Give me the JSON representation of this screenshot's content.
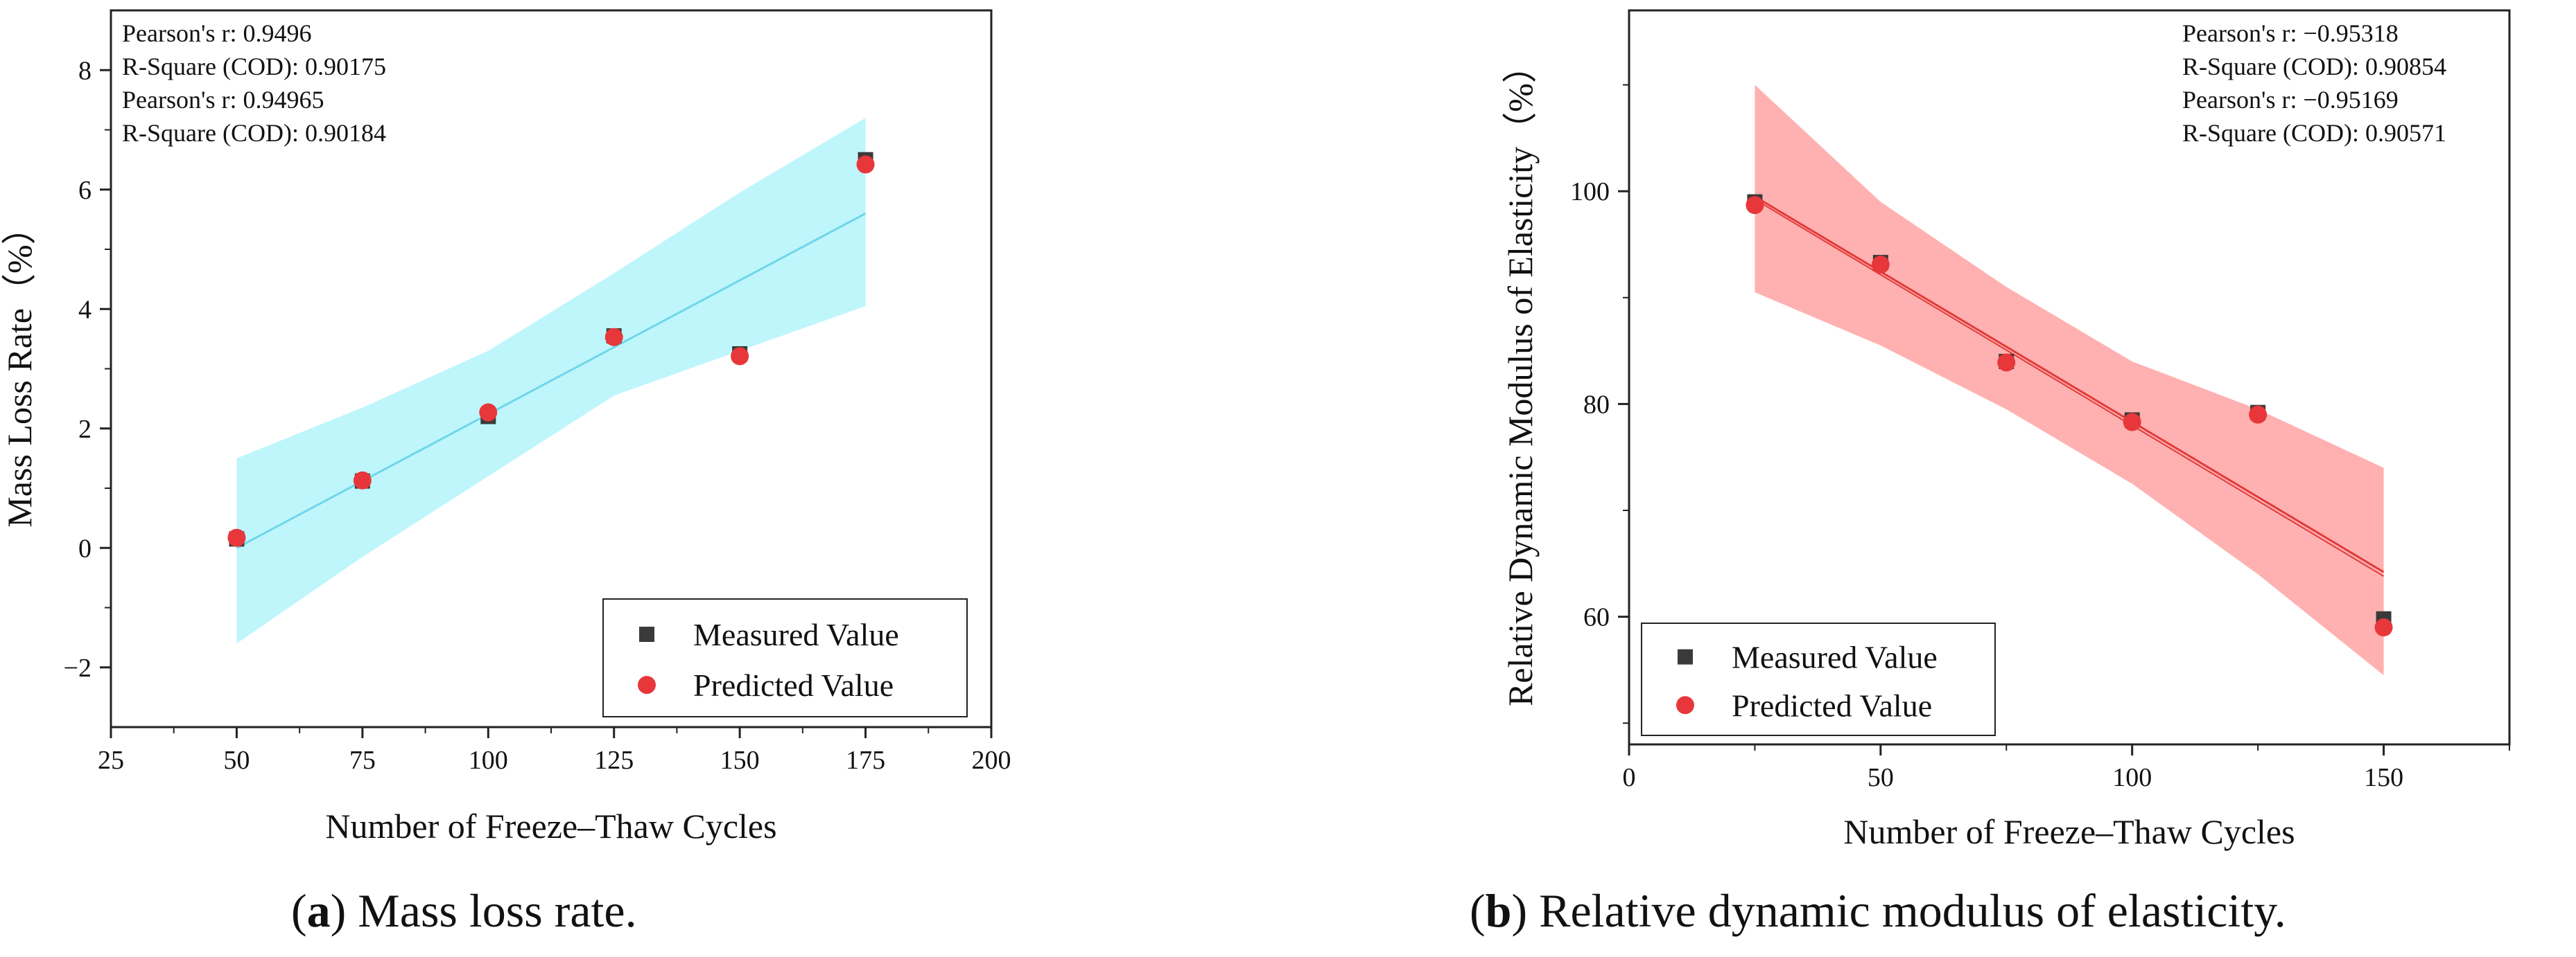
{
  "panels": [
    {
      "caption_letter": "a",
      "caption_text": ") Mass loss rate.",
      "caption_prefix": "("
    },
    {
      "caption_letter": "b",
      "caption_text": ") Relative dynamic modulus of elasticity.",
      "caption_prefix": "("
    }
  ],
  "chart_data": [
    {
      "type": "scatter",
      "xlabel": "Number of Freeze–Thaw Cycles",
      "ylabel": "Mass Loss Rate（%）",
      "xlim": [
        25,
        200
      ],
      "ylim": [
        -3,
        9
      ],
      "xticks": [
        25,
        50,
        75,
        100,
        125,
        150,
        175,
        200
      ],
      "yticks": [
        -2,
        0,
        2,
        4,
        6,
        8
      ],
      "ytick_labels": [
        "−2",
        "0",
        "2",
        "4",
        "6",
        "8"
      ],
      "annotations": [
        "Pearson's r: 0.9496",
        "R-Square (COD): 0.90175",
        "Pearson's r: 0.94965",
        "R-Square (COD): 0.90184"
      ],
      "legend_position": "bottom-right",
      "series": [
        {
          "name": "Measured Value",
          "marker": "square",
          "color": "#3a3a3a",
          "x": [
            50,
            75,
            100,
            125,
            150,
            175
          ],
          "y": [
            0.15,
            1.12,
            2.2,
            3.55,
            3.25,
            6.5
          ]
        },
        {
          "name": "Predicted Value",
          "marker": "circle",
          "color": "#e8373b",
          "x": [
            50,
            75,
            100,
            125,
            150,
            175
          ],
          "y": [
            0.17,
            1.13,
            2.27,
            3.53,
            3.21,
            6.42
          ]
        }
      ],
      "fit": {
        "x": [
          50,
          175
        ],
        "y": [
          0.0,
          5.6
        ],
        "color": "#6fd6e8",
        "band_upper": [
          1.5,
          2.35,
          3.3,
          4.6,
          5.95,
          7.2
        ],
        "band_lower": [
          -1.6,
          -0.15,
          1.2,
          2.55,
          3.3,
          4.05
        ],
        "band_x": [
          50,
          75,
          100,
          125,
          150,
          175
        ],
        "band_color": "#a8f3fb"
      }
    },
    {
      "type": "scatter",
      "xlabel": "Number of Freeze–Thaw Cycles",
      "ylabel": "Relative Dynamic Modulus of Elasticity（%）",
      "xlim": [
        0,
        175
      ],
      "ylim": [
        48,
        117
      ],
      "xticks": [
        0,
        50,
        100,
        150
      ],
      "yticks": [
        60,
        80,
        100
      ],
      "ytick_labels": [
        "60",
        "80",
        "100"
      ],
      "annotations": [
        "Pearson's r: −0.95318",
        "R-Square (COD): 0.90854",
        "Pearson's r: −0.95169",
        "R-Square (COD): 0.90571"
      ],
      "legend_position": "bottom-left",
      "series": [
        {
          "name": "Measured Value",
          "marker": "square",
          "color": "#3a3a3a",
          "x": [
            25,
            50,
            75,
            100,
            125,
            150
          ],
          "y": [
            99.0,
            93.3,
            84.0,
            78.5,
            79.2,
            59.8
          ]
        },
        {
          "name": "Predicted Value",
          "marker": "circle",
          "color": "#e8373b",
          "x": [
            25,
            50,
            75,
            100,
            125,
            150
          ],
          "y": [
            98.7,
            93.1,
            83.9,
            78.3,
            79.0,
            59.0
          ]
        }
      ],
      "fit": {
        "x": [
          25,
          150
        ],
        "y": [
          99.5,
          64.2
        ],
        "color": "#e23a3a",
        "band_upper": [
          110,
          99.0,
          91.0,
          84.0,
          79.5,
          74.0
        ],
        "band_lower": [
          90.5,
          85.5,
          79.5,
          72.5,
          64.0,
          54.5
        ],
        "band_x": [
          25,
          50,
          75,
          100,
          125,
          150
        ],
        "band_color": "#ffa3a3"
      }
    }
  ]
}
